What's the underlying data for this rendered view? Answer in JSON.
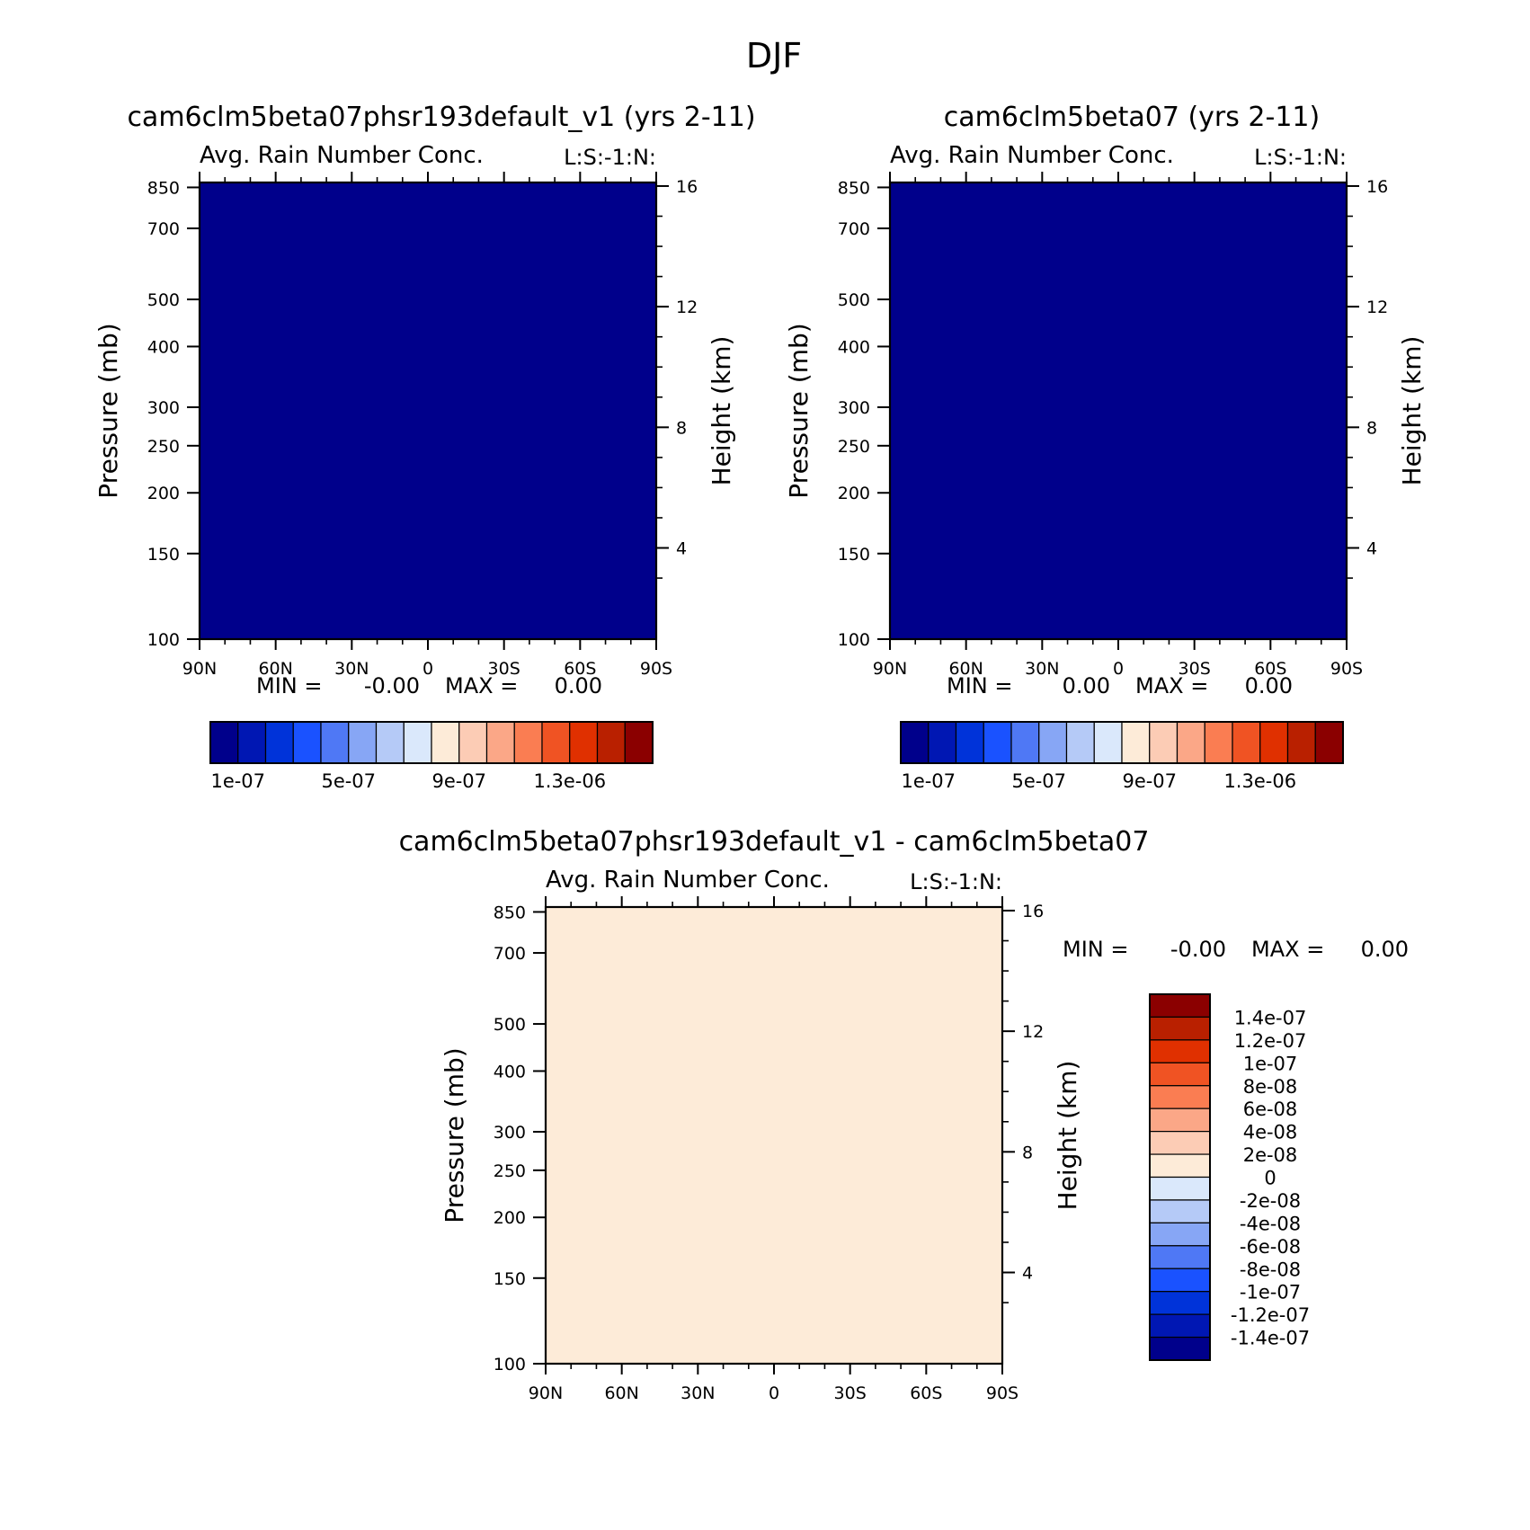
{
  "figure": {
    "title": "DJF"
  },
  "colors": {
    "abs_levels": [
      "#00008b",
      "#0017b3",
      "#0033d9",
      "#1a52ff",
      "#4f78f5",
      "#87a6f5",
      "#b5caf7",
      "#dae8fb",
      "#fdebd8",
      "#fcccb5",
      "#fba787",
      "#fa7d52",
      "#f05323",
      "#e03000",
      "#b92000",
      "#8b0000"
    ],
    "diff_levels": [
      "#00008b",
      "#0017b3",
      "#0033d9",
      "#1a52ff",
      "#4f78f5",
      "#87a6f5",
      "#b5caf7",
      "#dae8fb",
      "#fdebd8",
      "#fcccb5",
      "#fba787",
      "#fa7d52",
      "#f05323",
      "#e03000",
      "#b92000",
      "#8b0000"
    ]
  },
  "chart_data": [
    {
      "type": "heatmap",
      "title": "cam6clm5beta07phsr193default_v1 (yrs 2-11)",
      "subtitle": "Avg. Rain Number Conc.",
      "corner_label": "L:S:-1:N:",
      "xlabel": "",
      "ylabel": "Pressure (mb)",
      "ylabel_right": "Height (km)",
      "x_ticks": [
        "90N",
        "60N",
        "30N",
        "0",
        "30S",
        "60S",
        "90S"
      ],
      "y_ticks": [
        "100",
        "150",
        "200",
        "250",
        "300",
        "400",
        "500",
        "700",
        "850"
      ],
      "y_ticks_right": [
        "16",
        "12",
        "8",
        "4"
      ],
      "y_scale": "log",
      "ylim": [
        870,
        100
      ],
      "min_label": "MIN =",
      "min_value": "-0.00",
      "max_label": "MAX =",
      "max_value": "0.00",
      "colorbar_labels": [
        "1e-07",
        "5e-07",
        "9e-07",
        "1.3e-06"
      ]
    },
    {
      "type": "heatmap",
      "title": "cam6clm5beta07 (yrs 2-11)",
      "subtitle": "Avg. Rain Number Conc.",
      "corner_label": "L:S:-1:N:",
      "xlabel": "",
      "ylabel": "Pressure (mb)",
      "ylabel_right": "Height (km)",
      "x_ticks": [
        "90N",
        "60N",
        "30N",
        "0",
        "30S",
        "60S",
        "90S"
      ],
      "y_ticks": [
        "100",
        "150",
        "200",
        "250",
        "300",
        "400",
        "500",
        "700",
        "850"
      ],
      "y_ticks_right": [
        "16",
        "12",
        "8",
        "4"
      ],
      "y_scale": "log",
      "ylim": [
        870,
        100
      ],
      "min_label": "MIN =",
      "min_value": "0.00",
      "max_label": "MAX =",
      "max_value": "0.00",
      "colorbar_labels": [
        "1e-07",
        "5e-07",
        "9e-07",
        "1.3e-06"
      ]
    },
    {
      "type": "heatmap",
      "title": "cam6clm5beta07phsr193default_v1 - cam6clm5beta07",
      "subtitle": "Avg. Rain Number Conc.",
      "corner_label": "L:S:-1:N:",
      "xlabel": "",
      "ylabel": "Pressure (mb)",
      "ylabel_right": "Height (km)",
      "x_ticks": [
        "90N",
        "60N",
        "30N",
        "0",
        "30S",
        "60S",
        "90S"
      ],
      "y_ticks": [
        "100",
        "150",
        "200",
        "250",
        "300",
        "400",
        "500",
        "700",
        "850"
      ],
      "y_ticks_right": [
        "16",
        "12",
        "8",
        "4"
      ],
      "y_scale": "log",
      "ylim": [
        870,
        100
      ],
      "min_label": "MIN =",
      "min_value": "-0.00",
      "max_label": "MAX =",
      "max_value": "0.00",
      "colorbar_labels": [
        "1.4e-07",
        "1.2e-07",
        "1e-07",
        "8e-08",
        "6e-08",
        "4e-08",
        "2e-08",
        "0",
        "-2e-08",
        "-4e-08",
        "-6e-08",
        "-8e-08",
        "-1e-07",
        "-1.2e-07",
        "-1.4e-07"
      ]
    }
  ]
}
